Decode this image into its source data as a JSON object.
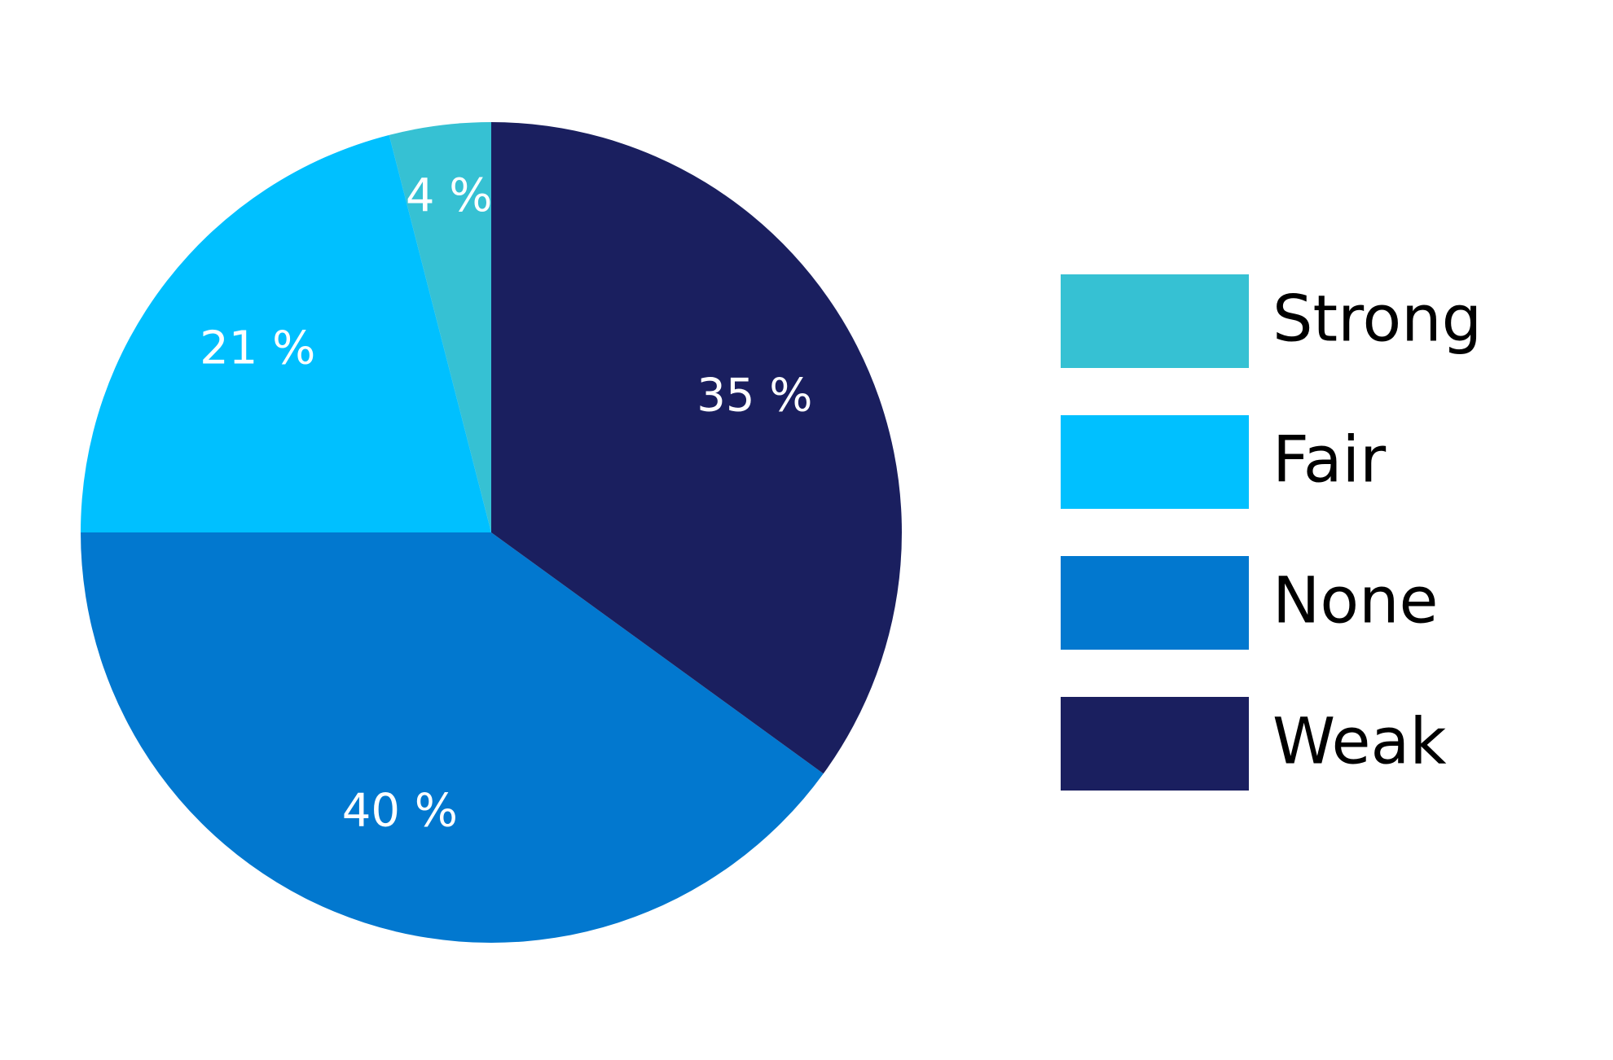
{
  "chart_data": {
    "type": "pie",
    "categories": [
      "Strong",
      "Fair",
      "None",
      "Weak"
    ],
    "values": [
      4,
      21,
      40,
      35
    ],
    "value_labels": [
      "4 %",
      "21 %",
      "40 %",
      "35 %"
    ],
    "colors": [
      "#36c1d3",
      "#00c0ff",
      "#0278cf",
      "#1a1f5f"
    ],
    "legend": "right"
  }
}
